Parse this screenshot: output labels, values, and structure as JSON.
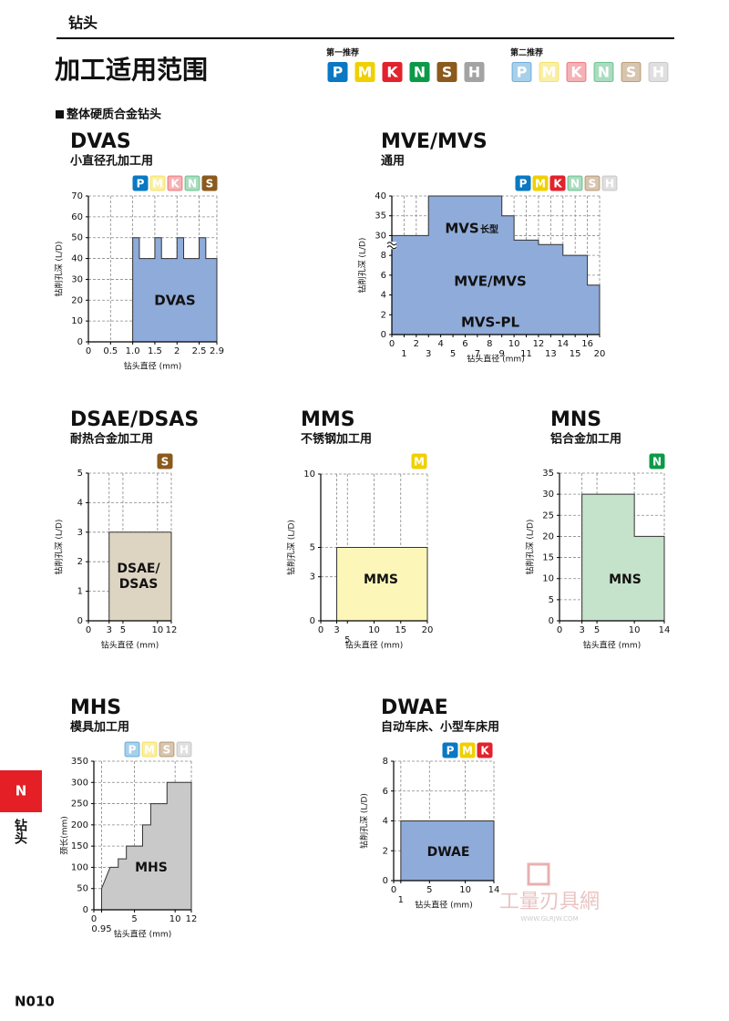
{
  "header": {
    "section": "钻头",
    "title": "加工适用范围",
    "subsection": "整体硬质合金钻头"
  },
  "grade_colors": {
    "P": "#0a78c2",
    "M": "#f0d000",
    "K": "#e2222c",
    "N": "#0b9a48",
    "S": "#8b5a1c",
    "H": "#a3a3a3"
  },
  "legend": [
    {
      "label": "第一推荐",
      "level": 1,
      "letters": [
        "P",
        "M",
        "K",
        "N",
        "S",
        "H"
      ]
    },
    {
      "label": "第二推荐",
      "level": 2,
      "letters": [
        "P",
        "M",
        "K",
        "N",
        "S",
        "H"
      ]
    }
  ],
  "chart_data": [
    {
      "type": "area",
      "title": "DVAS",
      "subtitle": "小直径孔加工用",
      "grades": [
        {
          "letter": "P",
          "level": 1
        },
        {
          "letter": "M",
          "level": 2
        },
        {
          "letter": "K",
          "level": 2
        },
        {
          "letter": "N",
          "level": 2
        },
        {
          "letter": "S",
          "level": 1
        }
      ],
      "xlabel": "钻头直径 (mm)",
      "ylabel": "钻削孔深 (L/D)",
      "xlim": [
        0,
        2.9
      ],
      "ylim": [
        0,
        70
      ],
      "xticks": [
        0,
        0.5,
        {
          "value": 1,
          "label": "1.0"
        },
        1.5,
        2,
        2.5,
        2.9
      ],
      "yticks": [
        0,
        10,
        20,
        30,
        40,
        50,
        60,
        70
      ],
      "x": [
        1,
        1.15,
        1.15,
        1.5,
        1.5,
        1.65,
        1.65,
        2,
        2,
        2.15,
        2.15,
        2.5,
        2.5,
        2.65,
        2.65,
        2.9
      ],
      "values": [
        50,
        50,
        40,
        40,
        50,
        50,
        40,
        40,
        50,
        50,
        40,
        40,
        50,
        50,
        40,
        40
      ],
      "color": "#8fabd9",
      "grid": true,
      "area_labels": [
        "DVAS"
      ]
    },
    {
      "type": "area",
      "title": "MVE/MVS",
      "subtitle": "通用",
      "grades": [
        {
          "letter": "P",
          "level": 1
        },
        {
          "letter": "M",
          "level": 1
        },
        {
          "letter": "K",
          "level": 1
        },
        {
          "letter": "N",
          "level": 2
        },
        {
          "letter": "S",
          "level": 2
        },
        {
          "letter": "H",
          "level": 2
        }
      ],
      "xlabel": "钻头直径 (mm)",
      "ylabel": "钻削孔深 (L/D)",
      "xlim": [
        0,
        20
      ],
      "ylim": [
        0,
        40
      ],
      "xscale": "segmented",
      "yscale": "segmented",
      "ybreak": true,
      "xticks": [
        0,
        1,
        2,
        3,
        4,
        5,
        6,
        7,
        8,
        9,
        10,
        11,
        12,
        13,
        14,
        15,
        16,
        20
      ],
      "yticks": [
        0,
        2,
        4,
        6,
        8,
        30,
        35,
        40
      ],
      "x": [
        0,
        3,
        3,
        9,
        9,
        10,
        10,
        12,
        12,
        14,
        14,
        16,
        16,
        20
      ],
      "values": [
        30,
        30,
        40,
        40,
        35,
        35,
        25,
        25,
        20,
        20,
        8,
        8,
        5,
        5
      ],
      "color": "#8fabd9",
      "grid": true,
      "area_labels": [
        "MVS",
        "长型",
        "MVE/MVS",
        "MVS-PL"
      ]
    },
    {
      "type": "area",
      "title": "DSAE/DSAS",
      "subtitle": "耐热合金加工用",
      "grades": [
        {
          "letter": "S",
          "level": 1
        }
      ],
      "xlabel": "钻头直径 (mm)",
      "ylabel": "钻削孔深 (L/D)",
      "xlim": [
        0,
        12
      ],
      "ylim": [
        0,
        5
      ],
      "xticks": [
        0,
        3,
        5,
        10,
        12
      ],
      "yticks": [
        0,
        1,
        2,
        3,
        4,
        5
      ],
      "x": [
        3,
        12
      ],
      "values": [
        3,
        3
      ],
      "color": "#ddd4c2",
      "grid": true,
      "area_labels": [
        "DSAE/",
        "DSAS"
      ]
    },
    {
      "type": "area",
      "title": "MMS",
      "subtitle": "不锈钢加工用",
      "grades": [
        {
          "letter": "M",
          "level": 1
        }
      ],
      "xlabel": "钻头直径 (mm)",
      "ylabel": "钻削孔深 (L/D)",
      "xlim": [
        0,
        20
      ],
      "ylim": [
        0,
        10
      ],
      "xticks": [
        0,
        3,
        5,
        10,
        15,
        20
      ],
      "yticks": [
        0,
        3,
        5,
        10
      ],
      "x": [
        3,
        20
      ],
      "values": [
        5,
        5
      ],
      "color": "#fcf7b9",
      "grid": true,
      "area_labels": [
        "MMS"
      ]
    },
    {
      "type": "area",
      "title": "MNS",
      "subtitle": "铝合金加工用",
      "grades": [
        {
          "letter": "N",
          "level": 1
        }
      ],
      "xlabel": "钻头直径 (mm)",
      "ylabel": "钻削孔深 (L/D)",
      "xlim": [
        0,
        14
      ],
      "ylim": [
        0,
        35
      ],
      "xticks": [
        0,
        3,
        5,
        10,
        14
      ],
      "yticks": [
        0,
        5,
        10,
        15,
        20,
        25,
        30,
        35
      ],
      "x": [
        3,
        10,
        10,
        14
      ],
      "values": [
        30,
        30,
        20,
        20
      ],
      "color": "#c5e2ca",
      "grid": true,
      "area_labels": [
        "MNS"
      ]
    },
    {
      "type": "area",
      "title": "MHS",
      "subtitle": "模具加工用",
      "grades": [
        {
          "letter": "P",
          "level": 2
        },
        {
          "letter": "M",
          "level": 2
        },
        {
          "letter": "S",
          "level": 2
        },
        {
          "letter": "H",
          "level": 2
        }
      ],
      "xlabel": "钻头直径 (mm)",
      "ylabel": "颈长(mm)",
      "xlim": [
        0,
        12
      ],
      "ylim": [
        0,
        350
      ],
      "xticks": [
        0,
        0.95,
        5,
        10,
        12
      ],
      "yticks": [
        0,
        50,
        100,
        150,
        200,
        250,
        300,
        350
      ],
      "x": [
        0.95,
        2,
        3,
        3,
        4,
        4,
        6,
        6,
        7,
        7,
        9,
        9,
        12
      ],
      "values": [
        50,
        100,
        100,
        120,
        120,
        150,
        150,
        200,
        200,
        250,
        250,
        300,
        300
      ],
      "color": "#c9c9c9",
      "grid": true,
      "area_labels": [
        "MHS"
      ]
    },
    {
      "type": "area",
      "title": "DWAE",
      "subtitle": "自动车床、小型车床用",
      "grades": [
        {
          "letter": "P",
          "level": 1
        },
        {
          "letter": "M",
          "level": 1
        },
        {
          "letter": "K",
          "level": 1
        }
      ],
      "xlabel": "钻头直径 (mm)",
      "ylabel": "钻削孔深 (L/D)",
      "xlim": [
        0,
        14
      ],
      "ylim": [
        0,
        8
      ],
      "xticks": [
        0,
        1,
        5,
        10,
        14
      ],
      "yticks": [
        0,
        2,
        4,
        6,
        8
      ],
      "x": [
        1,
        14
      ],
      "values": [
        4,
        4
      ],
      "color": "#8fabd9",
      "grid": true,
      "area_labels": [
        "DWAE"
      ]
    }
  ],
  "side_tab": {
    "letter": "N",
    "label": "钻头"
  },
  "footer": {
    "page": "N010"
  },
  "watermark": {
    "text": "工量刃具網",
    "url": "WWW.GLRJW.COM"
  }
}
